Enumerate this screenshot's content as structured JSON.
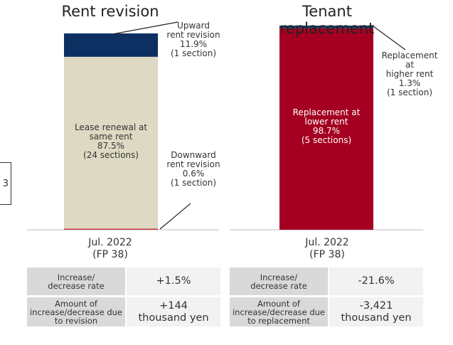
{
  "side_label": "3",
  "chart_data": [
    {
      "type": "bar",
      "stacked": true,
      "title": "Rent revision",
      "categories": [
        "Jul. 2022\n(FP 38)"
      ],
      "ylim": [
        0,
        100
      ],
      "series": [
        {
          "name": "Downward\nrent revision",
          "color": "#c0393f",
          "values": [
            0.6
          ],
          "value_labels": [
            "0.6%"
          ],
          "sections": "(1 section)"
        },
        {
          "name": "Lease renewal at\nsame rent",
          "color": "#ddd9c3",
          "values": [
            87.5
          ],
          "value_labels": [
            "87.5%"
          ],
          "sections": "(24 sections)"
        },
        {
          "name": "Upward\nrent revision",
          "color": "#0d2f62",
          "values": [
            11.9
          ],
          "value_labels": [
            "11.9%"
          ],
          "sections": "(1 section)"
        }
      ],
      "table": [
        [
          "Increase/\ndecrease rate",
          "+1.5%"
        ],
        [
          "Amount of\nincrease/decrease due\nto revision",
          "+144\nthousand yen"
        ]
      ]
    },
    {
      "type": "bar",
      "stacked": true,
      "title": "Tenant replacement",
      "categories": [
        "Jul. 2022\n(FP 38)"
      ],
      "ylim": [
        0,
        100
      ],
      "series": [
        {
          "name": "Replacement at\nlower rent",
          "color": "#a50021",
          "values": [
            98.7
          ],
          "value_labels": [
            "98.7%"
          ],
          "sections": "(5 sections)"
        },
        {
          "name": "Replacement at\nhigher rent",
          "color": "#17375e",
          "values": [
            1.3
          ],
          "value_labels": [
            "1.3%"
          ],
          "sections": "(1 section)"
        }
      ],
      "table": [
        [
          "Increase/\ndecrease rate",
          "-21.6%"
        ],
        [
          "Amount of\nincrease/decrease due\nto replacement",
          "-3,421\nthousand yen"
        ]
      ]
    }
  ]
}
